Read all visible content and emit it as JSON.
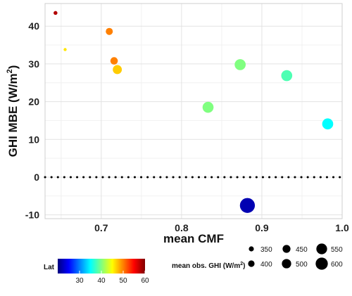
{
  "chart_data": {
    "type": "scatter",
    "xlabel": "mean CMF",
    "ylabel": "GHI MBE (W/m",
    "ylabel_sup": "2",
    "ylabel_close": ")",
    "xlim": [
      0.63,
      1.0
    ],
    "ylim": [
      -11,
      46
    ],
    "x_ticks": [
      0.7,
      0.8,
      0.9,
      1.0
    ],
    "x_tick_labels": [
      "0.7",
      "0.8",
      "0.9",
      "1.0"
    ],
    "y_ticks": [
      -10,
      0,
      10,
      20,
      30,
      40
    ],
    "y_tick_labels": [
      "-10",
      "0",
      "10",
      "20",
      "30",
      "40"
    ],
    "grid": true,
    "reference_line": {
      "y": 0,
      "style": "dotted",
      "color": "#000000"
    },
    "color_encoding": {
      "variable": "Lat",
      "title": "Lat",
      "range": [
        20,
        60
      ],
      "ticks": [
        30,
        40,
        50,
        60
      ],
      "tick_labels": [
        "30",
        "40",
        "50",
        "60"
      ],
      "palette": [
        "#00007f",
        "#0000ff",
        "#0080ff",
        "#00ffff",
        "#80ff80",
        "#ffff00",
        "#ff8000",
        "#ff0000",
        "#7f0000"
      ]
    },
    "size_encoding": {
      "title": "mean obs. GHI (W/m",
      "title_sup": "2",
      "title_close": ")",
      "levels": [
        350,
        400,
        450,
        500,
        550,
        600
      ],
      "labels": [
        "350",
        "400",
        "450",
        "500",
        "550",
        "600"
      ],
      "range": [
        300,
        620
      ]
    },
    "points": [
      {
        "x": 0.643,
        "y": 43.5,
        "lat": 58,
        "ghi": 320
      },
      {
        "x": 0.655,
        "y": 33.8,
        "lat": 46,
        "ghi": 300
      },
      {
        "x": 0.71,
        "y": 38.6,
        "lat": 50,
        "ghi": 400
      },
      {
        "x": 0.716,
        "y": 30.8,
        "lat": 50,
        "ghi": 410
      },
      {
        "x": 0.72,
        "y": 28.5,
        "lat": 47,
        "ghi": 450
      },
      {
        "x": 0.833,
        "y": 18.5,
        "lat": 40,
        "ghi": 500
      },
      {
        "x": 0.873,
        "y": 29.8,
        "lat": 40,
        "ghi": 500
      },
      {
        "x": 0.882,
        "y": -7.5,
        "lat": 22,
        "ghi": 600
      },
      {
        "x": 0.931,
        "y": 26.9,
        "lat": 38,
        "ghi": 500
      },
      {
        "x": 0.982,
        "y": 14.1,
        "lat": 35,
        "ghi": 500
      }
    ]
  }
}
